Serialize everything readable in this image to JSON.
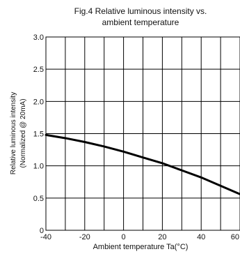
{
  "chart_data": {
    "type": "line",
    "title": "Fig.4 Relative luminous intensity vs.",
    "subtitle": "ambient temperature",
    "xlabel": "Ambient temperature Ta(°C)",
    "ylabel": "Relative luminous intensity",
    "ylabel2": "(Normalized @ 20mA)",
    "xlim": [
      -40,
      60
    ],
    "ylim": [
      0,
      3.0
    ],
    "x_ticks": [
      "-40",
      "-20",
      "0",
      "20",
      "40",
      "60"
    ],
    "y_ticks": [
      "0",
      "0.5",
      "1.0",
      "1.5",
      "2.0",
      "2.5",
      "3.0"
    ],
    "grid": true,
    "series": [
      {
        "x": [
          -40,
          -30,
          -20,
          -10,
          0,
          10,
          20,
          30,
          40,
          50,
          60
        ],
        "values": [
          1.48,
          1.43,
          1.37,
          1.3,
          1.22,
          1.13,
          1.04,
          0.93,
          0.82,
          0.69,
          0.56
        ]
      }
    ]
  }
}
